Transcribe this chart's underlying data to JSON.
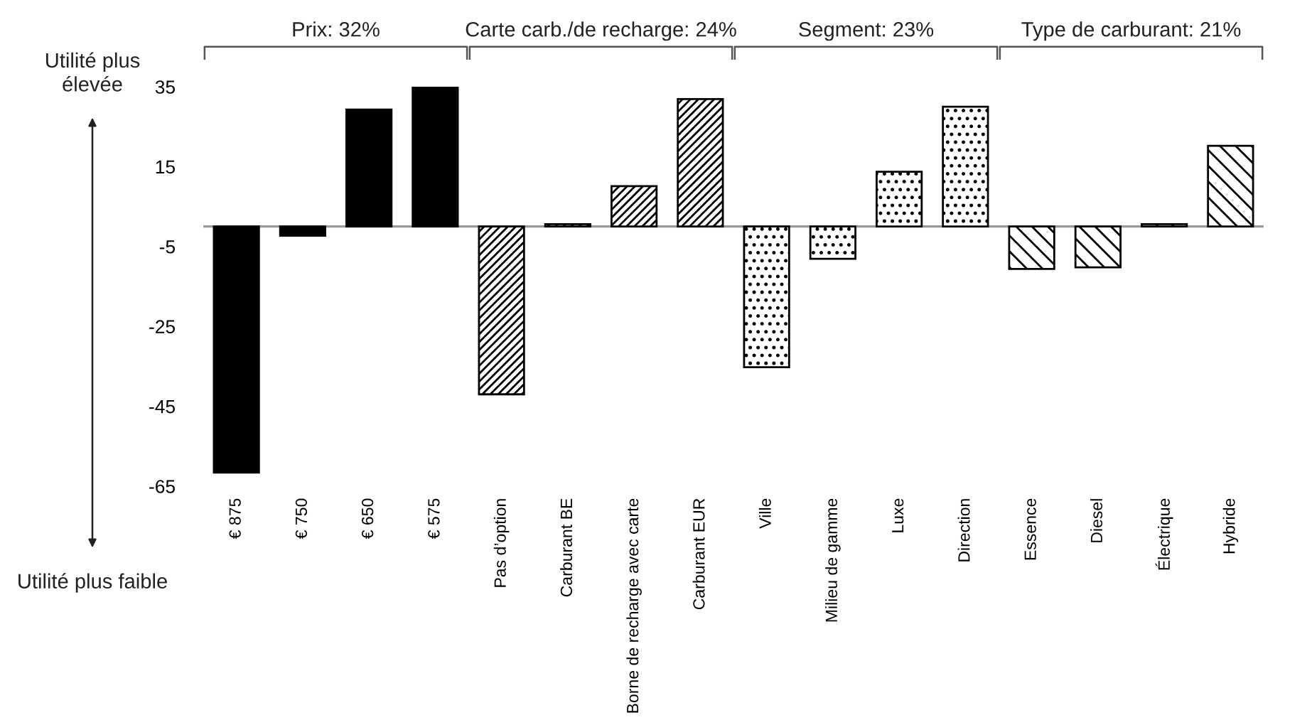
{
  "chart_data": {
    "type": "bar",
    "categories": [
      "€ 875",
      "€ 750",
      "€ 650",
      "€ 575",
      "Pas d’option",
      "Carburant BE",
      "Borne de recharge avec carte",
      "Carburant EUR",
      "Ville",
      "Milieu de gamme",
      "Luxe",
      "Direction",
      "Essence",
      "Diesel",
      "Électrique",
      "Hybride"
    ],
    "series": [
      {
        "color": "#000000",
        "values": [
          -61.6,
          -2.3,
          29.3,
          34.9,
          null,
          null,
          null,
          null,
          null,
          null,
          null,
          null,
          null,
          null,
          null,
          null
        ]
      },
      {
        "color": "#000000",
        "values": [
          null,
          null,
          null,
          null,
          -42.0,
          0.6,
          10.1,
          31.9,
          null,
          null,
          null,
          null,
          null,
          null,
          null,
          null
        ]
      },
      {
        "color": "#000000",
        "values": [
          null,
          null,
          null,
          null,
          null,
          null,
          null,
          null,
          -35.2,
          -8.1,
          13.7,
          30.0,
          null,
          null,
          null,
          null
        ]
      },
      {
        "color": "#000000",
        "values": [
          null,
          null,
          null,
          null,
          null,
          null,
          null,
          null,
          null,
          null,
          null,
          null,
          -10.6,
          -10.2,
          0.6,
          20.2
        ]
      }
    ],
    "ylim": [
      -65,
      35
    ],
    "yticks": [
      35,
      15,
      -5,
      -25,
      -45,
      -65
    ],
    "annotations": [
      "Prix: 32%",
      "Carte carb./de recharge: 24%",
      "Segment: 23%",
      "Type de carburant: 21%",
      "Utilité plus\nélevée",
      "Utilité plus faible"
    ],
    "grid": false,
    "legend": false
  }
}
